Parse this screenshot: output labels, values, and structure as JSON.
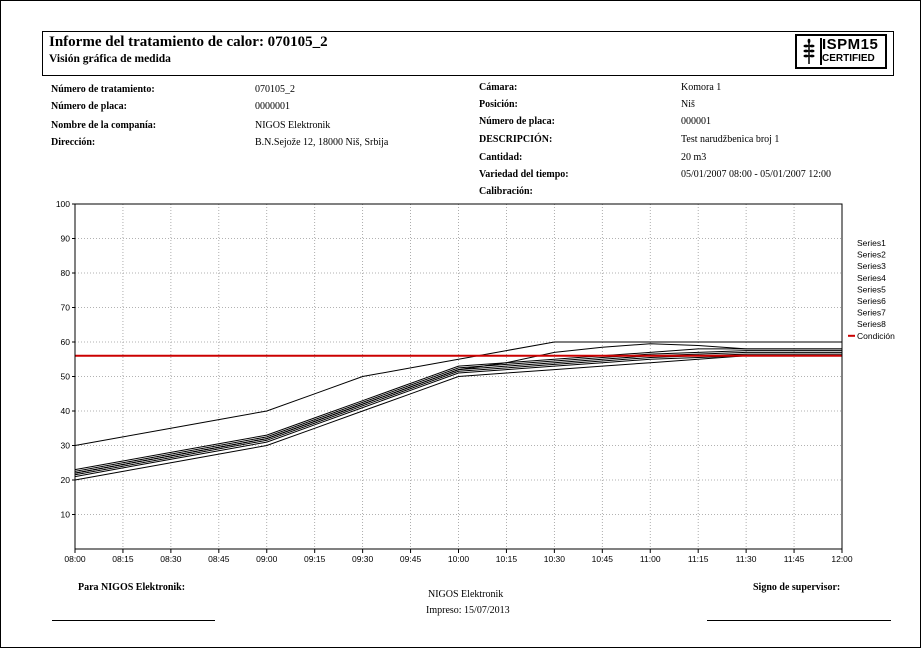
{
  "header": {
    "title": "Informe del tratamiento de calor: 070105_2",
    "subtitle": "Visión gráfica de medida",
    "logo_line1": "ISPM15",
    "logo_line2": "CERTIFIED"
  },
  "left_info": [
    {
      "label": "Número de tratamiento:",
      "value": "070105_2"
    },
    {
      "label": "Número de placa:",
      "value": "0000001"
    },
    {
      "label": "Nombre de la companía:",
      "value": "NIGOS Elektronik"
    },
    {
      "label": "Dirección:",
      "value": "B.N.Sejože 12, 18000 Niš, Srbija"
    }
  ],
  "right_info": [
    {
      "label": "Cámara:",
      "value": "Komora 1"
    },
    {
      "label": "Posición:",
      "value": "Niš"
    },
    {
      "label": "Número de placa:",
      "value": "000001"
    },
    {
      "label": "DESCRIPCIÓN:",
      "value": "Test narudžbenica broj 1"
    },
    {
      "label": "Cantidad:",
      "value": "20 m3"
    },
    {
      "label": "Variedad del tiempo:",
      "value": "05/01/2007 08:00 - 05/01/2007 12:00"
    },
    {
      "label": "Calibración:",
      "value": ""
    }
  ],
  "footer": {
    "left_label": "Para NIGOS Elektronik:",
    "center_line1": "NIGOS Elektronik",
    "center_line2": "Impreso: 15/07/2013",
    "right_label": "Signo de supervisor:"
  },
  "chart_data": {
    "type": "line",
    "title": "",
    "xlabel": "",
    "ylabel": "",
    "x": [
      "08:00",
      "08:15",
      "08:30",
      "08:45",
      "09:00",
      "09:15",
      "09:30",
      "09:45",
      "10:00",
      "10:15",
      "10:30",
      "10:45",
      "11:00",
      "11:15",
      "11:30",
      "11:45",
      "12:00"
    ],
    "ylim": [
      0,
      100
    ],
    "yticks": [
      10,
      20,
      30,
      40,
      50,
      60,
      70,
      80,
      90,
      100
    ],
    "grid": true,
    "legend_position": "right",
    "series": [
      {
        "name": "Series1",
        "color": "#000000",
        "values": [
          30,
          32.5,
          35,
          37.5,
          40,
          45,
          50,
          52.5,
          55,
          57.5,
          60,
          60,
          60,
          60,
          60,
          60,
          60
        ]
      },
      {
        "name": "Series2",
        "color": "#000000",
        "values": [
          23,
          25.5,
          28,
          30.5,
          33,
          38,
          43,
          48,
          53,
          54,
          55,
          56,
          57,
          58,
          58,
          58,
          58
        ]
      },
      {
        "name": "Series3",
        "color": "#000000",
        "values": [
          22.5,
          25,
          27.5,
          30,
          32.5,
          37.5,
          42.5,
          47.5,
          52.5,
          53.5,
          54.5,
          55.5,
          56.5,
          57,
          57.5,
          57.5,
          57.5
        ]
      },
      {
        "name": "Series4",
        "color": "#000000",
        "values": [
          22,
          24.5,
          27,
          29.5,
          32,
          37,
          42,
          47,
          52,
          53,
          54,
          55,
          56,
          56.5,
          57,
          57,
          57
        ]
      },
      {
        "name": "Series5",
        "color": "#000000",
        "values": [
          21.5,
          24,
          26.5,
          29,
          31.5,
          36.5,
          41.5,
          46.5,
          51.5,
          52.5,
          53.5,
          54.5,
          55.5,
          56,
          56.5,
          56.5,
          56.5
        ]
      },
      {
        "name": "Series6",
        "color": "#000000",
        "values": [
          21,
          23.5,
          26,
          28.5,
          31,
          36,
          41,
          46,
          51,
          52,
          53,
          54,
          55,
          55.5,
          56,
          56,
          56
        ]
      },
      {
        "name": "Series7",
        "color": "#000000",
        "values": [
          20,
          22.5,
          25,
          27.5,
          30,
          35,
          40,
          45,
          50,
          51,
          52,
          53,
          54,
          55,
          56,
          56,
          56
        ]
      },
      {
        "name": "Series8",
        "color": "#000000",
        "values": [
          22,
          24.5,
          27,
          29.5,
          32,
          37,
          42,
          47,
          52,
          54,
          57,
          58.5,
          59.5,
          59,
          58,
          58,
          58
        ]
      },
      {
        "name": "Condición",
        "color": "#cc0000",
        "values": [
          56,
          56,
          56,
          56,
          56,
          56,
          56,
          56,
          56,
          56,
          56,
          56,
          56,
          56,
          56,
          56,
          56
        ]
      }
    ]
  }
}
